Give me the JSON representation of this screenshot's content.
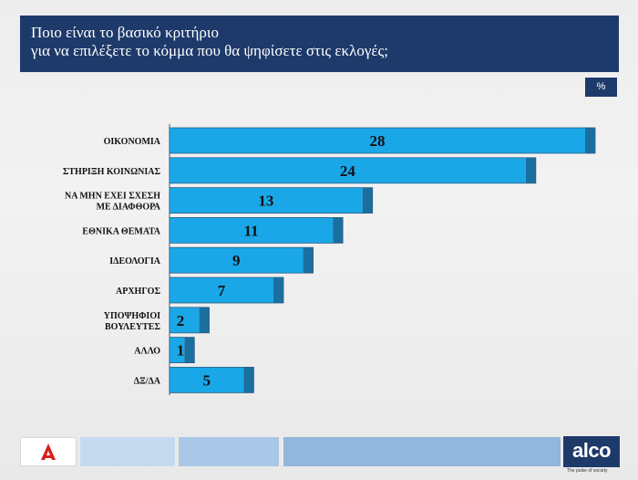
{
  "header": {
    "title_line1": "Ποιο είναι το βασικό κριτήριο",
    "title_line2": "για να επιλέξετε το κόμμα που θα ψηφίσετε στις εκλογές;"
  },
  "unit_badge": "%",
  "colors": {
    "header_bg": "#1e3a6a",
    "bar_fill": "#1aa7e8",
    "bar_edge": "#1a6f9f",
    "footer_light": "#c5daf0",
    "footer_mid": "#a7c6e6",
    "footer_dark": "#8fb4dc"
  },
  "chart_data": {
    "type": "bar",
    "orientation": "horizontal",
    "categories": [
      [
        "ΟΙΚΟΝΟΜΙΑ"
      ],
      [
        "ΣΤΗΡΙΞΗ ΚΟΙΝΩΝΙΑΣ"
      ],
      [
        "ΝΑ ΜΗΝ ΕΧΕΙ ΣΧΕΣΗ",
        "ΜΕ ΔΙΑΦΘΟΡΑ"
      ],
      [
        "ΕΘΝΙΚΑ ΘΕΜΑΤΑ"
      ],
      [
        "ΙΔΕΟΛΟΓΙΑ"
      ],
      [
        "ΑΡΧΗΓΟΣ"
      ],
      [
        "ΥΠΟΨΗΦΙΟΙ",
        "ΒΟΥΛΕΥΤΕΣ"
      ],
      [
        "ΑΛΛΟ"
      ],
      [
        "ΔΞ/ΔΑ"
      ]
    ],
    "values": [
      28,
      24,
      13,
      11,
      9,
      7,
      2,
      1,
      5
    ],
    "data_labels": [
      "28",
      "24",
      "13",
      "11",
      "9",
      "7",
      "2",
      "1",
      "5"
    ],
    "xlim": [
      0,
      28
    ],
    "grid": false,
    "legend": "none",
    "title": "",
    "xlabel": "",
    "ylabel": ""
  },
  "logos": {
    "right_text": "alco",
    "right_tagline": "The pulse of society"
  }
}
